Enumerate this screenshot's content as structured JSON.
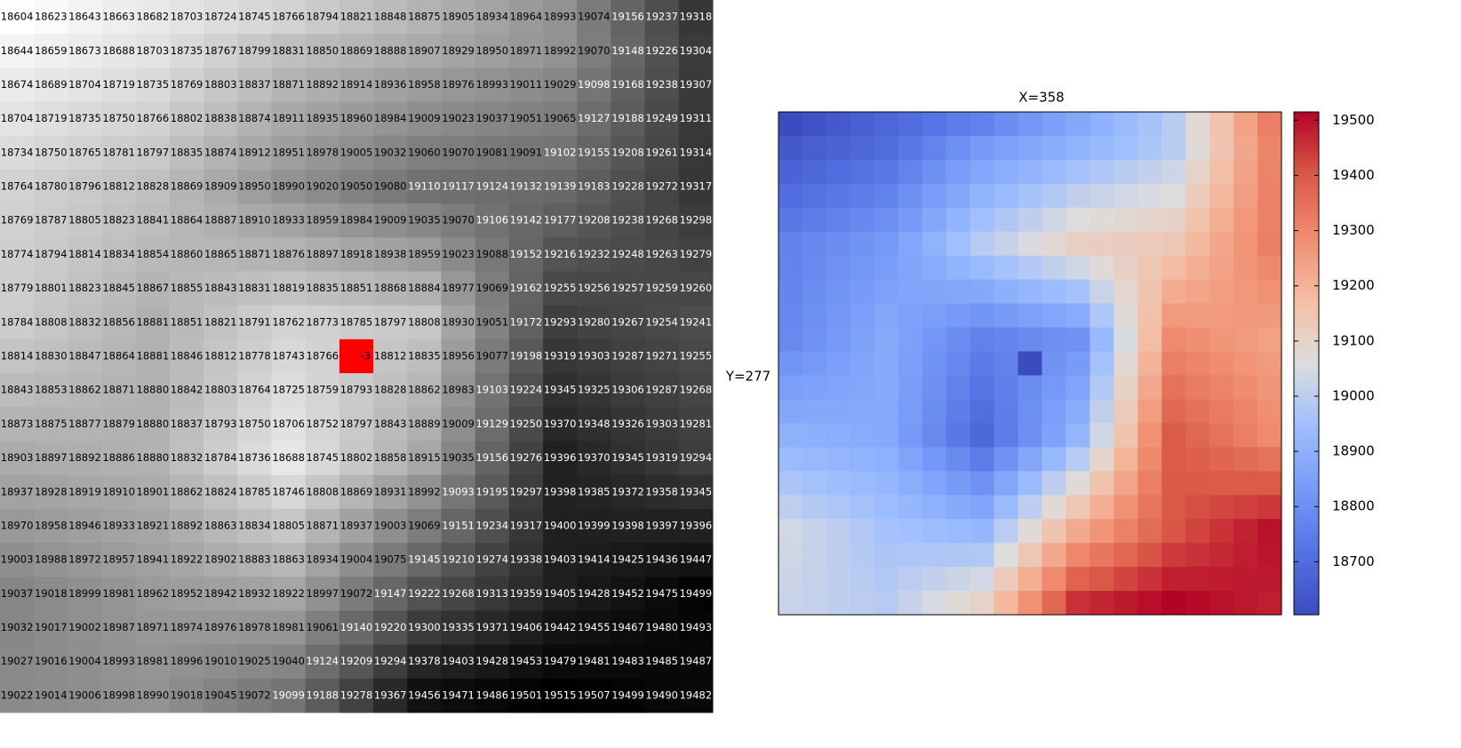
{
  "grid": {
    "rows": [
      [
        18604,
        18623,
        18643,
        18663,
        18682,
        18703,
        18724,
        18745,
        18766,
        18794,
        18821,
        18848,
        18875,
        18905,
        18934,
        18964,
        18993,
        19074,
        19156,
        19237,
        19318
      ],
      [
        18644,
        18659,
        18673,
        18688,
        18703,
        18735,
        18767,
        18799,
        18831,
        18850,
        18869,
        18888,
        18907,
        18929,
        18950,
        18971,
        18992,
        19070,
        19148,
        19226,
        19304
      ],
      [
        18674,
        18689,
        18704,
        18719,
        18735,
        18769,
        18803,
        18837,
        18871,
        18892,
        18914,
        18936,
        18958,
        18976,
        18993,
        19011,
        19029,
        19098,
        19168,
        19238,
        19307
      ],
      [
        18704,
        18719,
        18735,
        18750,
        18766,
        18802,
        18838,
        18874,
        18911,
        18935,
        18960,
        18984,
        19009,
        19023,
        19037,
        19051,
        19065,
        19127,
        19188,
        19249,
        19311
      ],
      [
        18734,
        18750,
        18765,
        18781,
        18797,
        18835,
        18874,
        18912,
        18951,
        18978,
        19005,
        19032,
        19060,
        19070,
        19081,
        19091,
        19102,
        19155,
        19208,
        19261,
        19314
      ],
      [
        18764,
        18780,
        18796,
        18812,
        18828,
        18869,
        18909,
        18950,
        18990,
        19020,
        19050,
        19080,
        19110,
        19117,
        19124,
        19132,
        19139,
        19183,
        19228,
        19272,
        19317
      ],
      [
        18769,
        18787,
        18805,
        18823,
        18841,
        18864,
        18887,
        18910,
        18933,
        18959,
        18984,
        19009,
        19035,
        19070,
        19106,
        19142,
        19177,
        19208,
        19238,
        19268,
        19298
      ],
      [
        18774,
        18794,
        18814,
        18834,
        18854,
        18860,
        18865,
        18871,
        18876,
        18897,
        18918,
        18938,
        18959,
        19023,
        19088,
        19152,
        19216,
        19232,
        19248,
        19263,
        19279
      ],
      [
        18779,
        18801,
        18823,
        18845,
        18867,
        18855,
        18843,
        18831,
        18819,
        18835,
        18851,
        18868,
        18884,
        18977,
        19069,
        19162,
        19255,
        19256,
        19257,
        19259,
        19260
      ],
      [
        18784,
        18808,
        18832,
        18856,
        18881,
        18851,
        18821,
        18791,
        18762,
        18773,
        18785,
        18797,
        18808,
        18930,
        19051,
        19172,
        19293,
        19280,
        19267,
        19254,
        19241
      ],
      [
        18814,
        18830,
        18847,
        18864,
        18881,
        18846,
        18812,
        18778,
        18743,
        18766,
        -3,
        18812,
        18835,
        18956,
        19077,
        19198,
        19319,
        19303,
        19287,
        19271,
        19255
      ],
      [
        18843,
        18853,
        18862,
        18871,
        18880,
        18842,
        18803,
        18764,
        18725,
        18759,
        18793,
        18828,
        18862,
        18983,
        19103,
        19224,
        19345,
        19325,
        19306,
        19287,
        19268
      ],
      [
        18873,
        18875,
        18877,
        18879,
        18880,
        18837,
        18793,
        18750,
        18706,
        18752,
        18797,
        18843,
        18889,
        19009,
        19129,
        19250,
        19370,
        19348,
        19326,
        19303,
        19281
      ],
      [
        18903,
        18897,
        18892,
        18886,
        18880,
        18832,
        18784,
        18736,
        18688,
        18745,
        18802,
        18858,
        18915,
        19035,
        19156,
        19276,
        19396,
        19370,
        19345,
        19319,
        19294
      ],
      [
        18937,
        18928,
        18919,
        18910,
        18901,
        18862,
        18824,
        18785,
        18746,
        18808,
        18869,
        18931,
        18992,
        19093,
        19195,
        19297,
        19398,
        19385,
        19372,
        19358,
        19345
      ],
      [
        18970,
        18958,
        18946,
        18933,
        18921,
        18892,
        18863,
        18834,
        18805,
        18871,
        18937,
        19003,
        19069,
        19151,
        19234,
        19317,
        19400,
        19399,
        19398,
        19397,
        19396
      ],
      [
        19003,
        18988,
        18972,
        18957,
        18941,
        18922,
        18902,
        18883,
        18863,
        18934,
        19004,
        19075,
        19145,
        19210,
        19274,
        19338,
        19403,
        19414,
        19425,
        19436,
        19447
      ],
      [
        19037,
        19018,
        18999,
        18981,
        18962,
        18952,
        18942,
        18932,
        18922,
        18997,
        19072,
        19147,
        19222,
        19268,
        19313,
        19359,
        19405,
        19428,
        19452,
        19475,
        19499
      ],
      [
        19032,
        19017,
        19002,
        18987,
        18971,
        18974,
        18976,
        18978,
        18981,
        19061,
        19140,
        19220,
        19300,
        19335,
        19371,
        19406,
        19442,
        19455,
        19467,
        19480,
        19493
      ],
      [
        19027,
        19016,
        19004,
        18993,
        18981,
        18996,
        19010,
        19025,
        19040,
        19124,
        19209,
        19294,
        19378,
        19403,
        19428,
        19453,
        19479,
        19481,
        19483,
        19485,
        19487
      ],
      [
        19022,
        19014,
        19006,
        18998,
        18990,
        19018,
        19045,
        19072,
        19099,
        19188,
        19278,
        19367,
        19456,
        19471,
        19486,
        19501,
        19515,
        19507,
        19499,
        19490,
        19482
      ]
    ],
    "masked": [
      10,
      10
    ]
  },
  "plot": {
    "title": "X=358",
    "ylabel": "Y=277",
    "colormap": "coolwarm",
    "colorbar": {
      "lim": [
        18604,
        19515
      ],
      "ticks": [
        18700,
        18800,
        18900,
        19000,
        19100,
        19200,
        19300,
        19400,
        19500
      ]
    }
  }
}
